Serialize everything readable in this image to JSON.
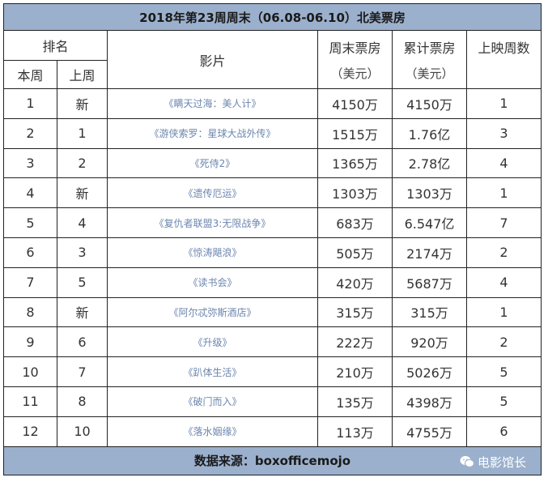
{
  "title": "2018年第23周周末（06.08-06.10）北美票房",
  "headers": {
    "rank": "排名",
    "this_week": "本周",
    "last_week": "上周",
    "film": "影片",
    "weekend_gross": "周末票房",
    "total_gross": "累计票房",
    "weeks": "上映周数",
    "unit": "（美元）"
  },
  "rows": [
    {
      "rank": "1",
      "last": "新",
      "film": "《瞒天过海：美人计》",
      "weekend": "4150万",
      "total": "4150万",
      "weeks": "1"
    },
    {
      "rank": "2",
      "last": "1",
      "film": "《游侠索罗：星球大战外传》",
      "weekend": "1515万",
      "total": "1.76亿",
      "weeks": "3"
    },
    {
      "rank": "3",
      "last": "2",
      "film": "《死侍2》",
      "weekend": "1365万",
      "total": "2.78亿",
      "weeks": "4"
    },
    {
      "rank": "4",
      "last": "新",
      "film": "《遗传厄运》",
      "weekend": "1303万",
      "total": "1303万",
      "weeks": "1"
    },
    {
      "rank": "5",
      "last": "4",
      "film": "《复仇者联盟3:无限战争》",
      "weekend": "683万",
      "total": "6.547亿",
      "weeks": "7"
    },
    {
      "rank": "6",
      "last": "3",
      "film": "《惊涛飓浪》",
      "weekend": "505万",
      "total": "2174万",
      "weeks": "2"
    },
    {
      "rank": "7",
      "last": "5",
      "film": "《读书会》",
      "weekend": "420万",
      "total": "5687万",
      "weeks": "4"
    },
    {
      "rank": "8",
      "last": "新",
      "film": "《阿尔忒弥斯酒店》",
      "weekend": "315万",
      "total": "315万",
      "weeks": "1"
    },
    {
      "rank": "9",
      "last": "6",
      "film": "《升级》",
      "weekend": "222万",
      "total": "920万",
      "weeks": "2"
    },
    {
      "rank": "10",
      "last": "7",
      "film": "《趴体生活》",
      "weekend": "210万",
      "total": "5026万",
      "weeks": "5"
    },
    {
      "rank": "11",
      "last": "8",
      "film": "《破门而入》",
      "weekend": "135万",
      "total": "4398万",
      "weeks": "5"
    },
    {
      "rank": "12",
      "last": "10",
      "film": "《落水姻缘》",
      "weekend": "113万",
      "total": "4755万",
      "weeks": "6"
    }
  ],
  "footer": {
    "source": "数据来源：boxofficemojo",
    "watermark": "电影馆长",
    "watermark_icon": "wechat-icon"
  },
  "colors": {
    "header_band": "#9bb0cc",
    "film_text": "#6b86ae"
  }
}
